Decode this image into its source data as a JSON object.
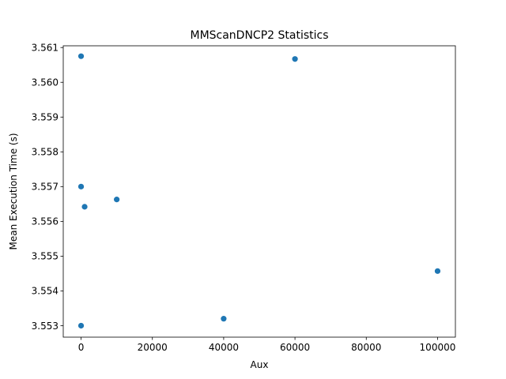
{
  "chart_data": {
    "type": "scatter",
    "title": "MMScanDNCP2 Statistics",
    "xlabel": "Aux",
    "ylabel": "Mean Execution Time (s)",
    "xlim": [
      -5000,
      105000
    ],
    "ylim": [
      3.55267,
      3.56105
    ],
    "x_ticks": [
      0,
      20000,
      40000,
      60000,
      80000,
      100000
    ],
    "y_ticks": [
      3.553,
      3.554,
      3.555,
      3.556,
      3.557,
      3.558,
      3.559,
      3.56,
      3.561
    ],
    "y_tick_labels": [
      "3.553",
      "3.554",
      "3.555",
      "3.556",
      "3.557",
      "3.558",
      "3.559",
      "3.560",
      "3.561"
    ],
    "grid": false,
    "legend": "none",
    "marker_color": "#1f77b4",
    "points": [
      {
        "x": 0,
        "y": 3.56075
      },
      {
        "x": 0,
        "y": 3.557
      },
      {
        "x": 0,
        "y": 3.553
      },
      {
        "x": 1000,
        "y": 3.55642
      },
      {
        "x": 10000,
        "y": 3.55663
      },
      {
        "x": 40000,
        "y": 3.5532
      },
      {
        "x": 60000,
        "y": 3.56067
      },
      {
        "x": 100000,
        "y": 3.55457
      }
    ]
  }
}
